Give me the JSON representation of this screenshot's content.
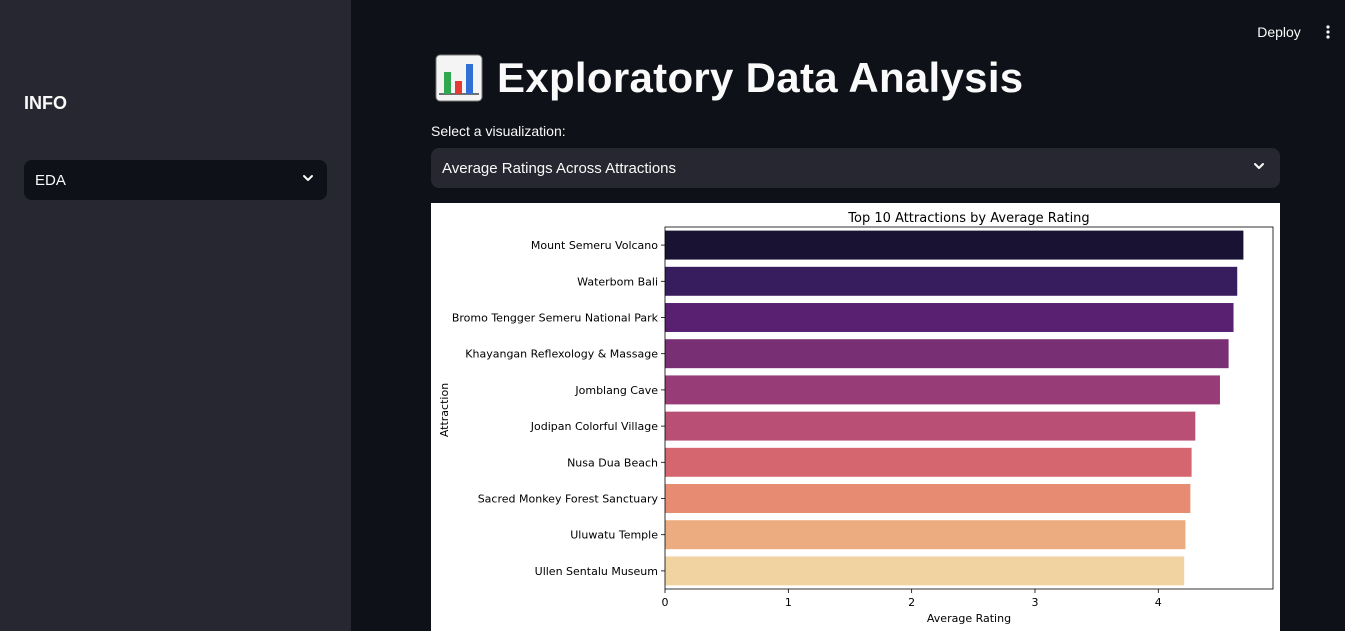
{
  "sidebar": {
    "title": "INFO",
    "select_value": "EDA"
  },
  "header": {
    "deploy_label": "Deploy",
    "menu_icon": "more-vert-icon"
  },
  "main": {
    "title_icon": "bar-chart-icon",
    "title": "Exploratory Data Analysis",
    "select_label": "Select a visualization:",
    "select_value": "Average Ratings Across Attractions"
  },
  "chart_data": {
    "type": "bar",
    "orientation": "horizontal",
    "title": "Top 10 Attractions by Average Rating",
    "xlabel": "Average Rating",
    "ylabel": "Attraction",
    "xlim": [
      0,
      4.93
    ],
    "xticks": [
      0,
      1,
      2,
      3,
      4
    ],
    "grid": false,
    "categories": [
      "Mount Semeru Volcano",
      "Waterbom Bali",
      "Bromo Tengger Semeru National Park",
      "Khayangan Reflexology & Massage",
      "Jomblang Cave",
      "Jodipan Colorful Village",
      "Nusa Dua Beach",
      "Sacred Monkey Forest Sanctuary",
      "Uluwatu Temple",
      "Ullen Sentalu Museum"
    ],
    "values": [
      4.69,
      4.64,
      4.61,
      4.57,
      4.5,
      4.3,
      4.27,
      4.26,
      4.22,
      4.21
    ],
    "colors": [
      "#1a1233",
      "#371c5e",
      "#592071",
      "#782f74",
      "#983c78",
      "#b94f74",
      "#d5656f",
      "#e78b72",
      "#edac80",
      "#f1d2a1"
    ]
  }
}
